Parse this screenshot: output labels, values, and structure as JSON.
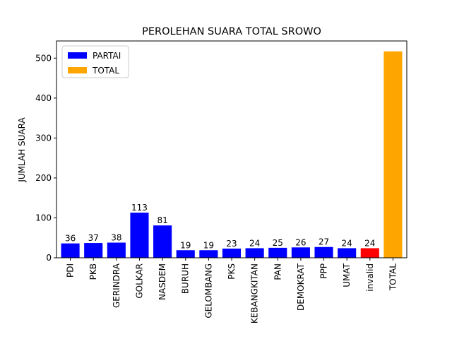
{
  "chart_data": {
    "type": "bar",
    "title": "PEROLEHAN SUARA TOTAL SROWO",
    "xlabel": "",
    "ylabel": "JUMLAH SUARA",
    "categories": [
      "PDI",
      "PKB",
      "GERINDRA",
      "GOLKAR",
      "NASDEM",
      "BURUH",
      "GELOMBANG",
      "PKS",
      "KEBANGKITAN",
      "PAN",
      "DEMOKRAT",
      "PPP",
      "UMAT",
      "invalid",
      "TOTAL"
    ],
    "values": [
      36,
      37,
      38,
      113,
      81,
      19,
      19,
      23,
      24,
      25,
      26,
      27,
      24,
      24,
      517
    ],
    "data_labels": [
      "36",
      "37",
      "38",
      "113",
      "81",
      "19",
      "19",
      "23",
      "24",
      "25",
      "26",
      "27",
      "24",
      "24",
      ""
    ],
    "bar_colors": [
      "#0000ff",
      "#0000ff",
      "#0000ff",
      "#0000ff",
      "#0000ff",
      "#0000ff",
      "#0000ff",
      "#0000ff",
      "#0000ff",
      "#0000ff",
      "#0000ff",
      "#0000ff",
      "#0000ff",
      "#ff0000",
      "#ffa500"
    ],
    "ylim": [
      0,
      543
    ],
    "yticks": [
      0,
      100,
      200,
      300,
      400,
      500
    ],
    "grid": false,
    "legend_position": "top-left",
    "legend": [
      {
        "label": "PARTAI",
        "color": "#0000ff"
      },
      {
        "label": "TOTAL",
        "color": "#ffa500"
      }
    ]
  }
}
